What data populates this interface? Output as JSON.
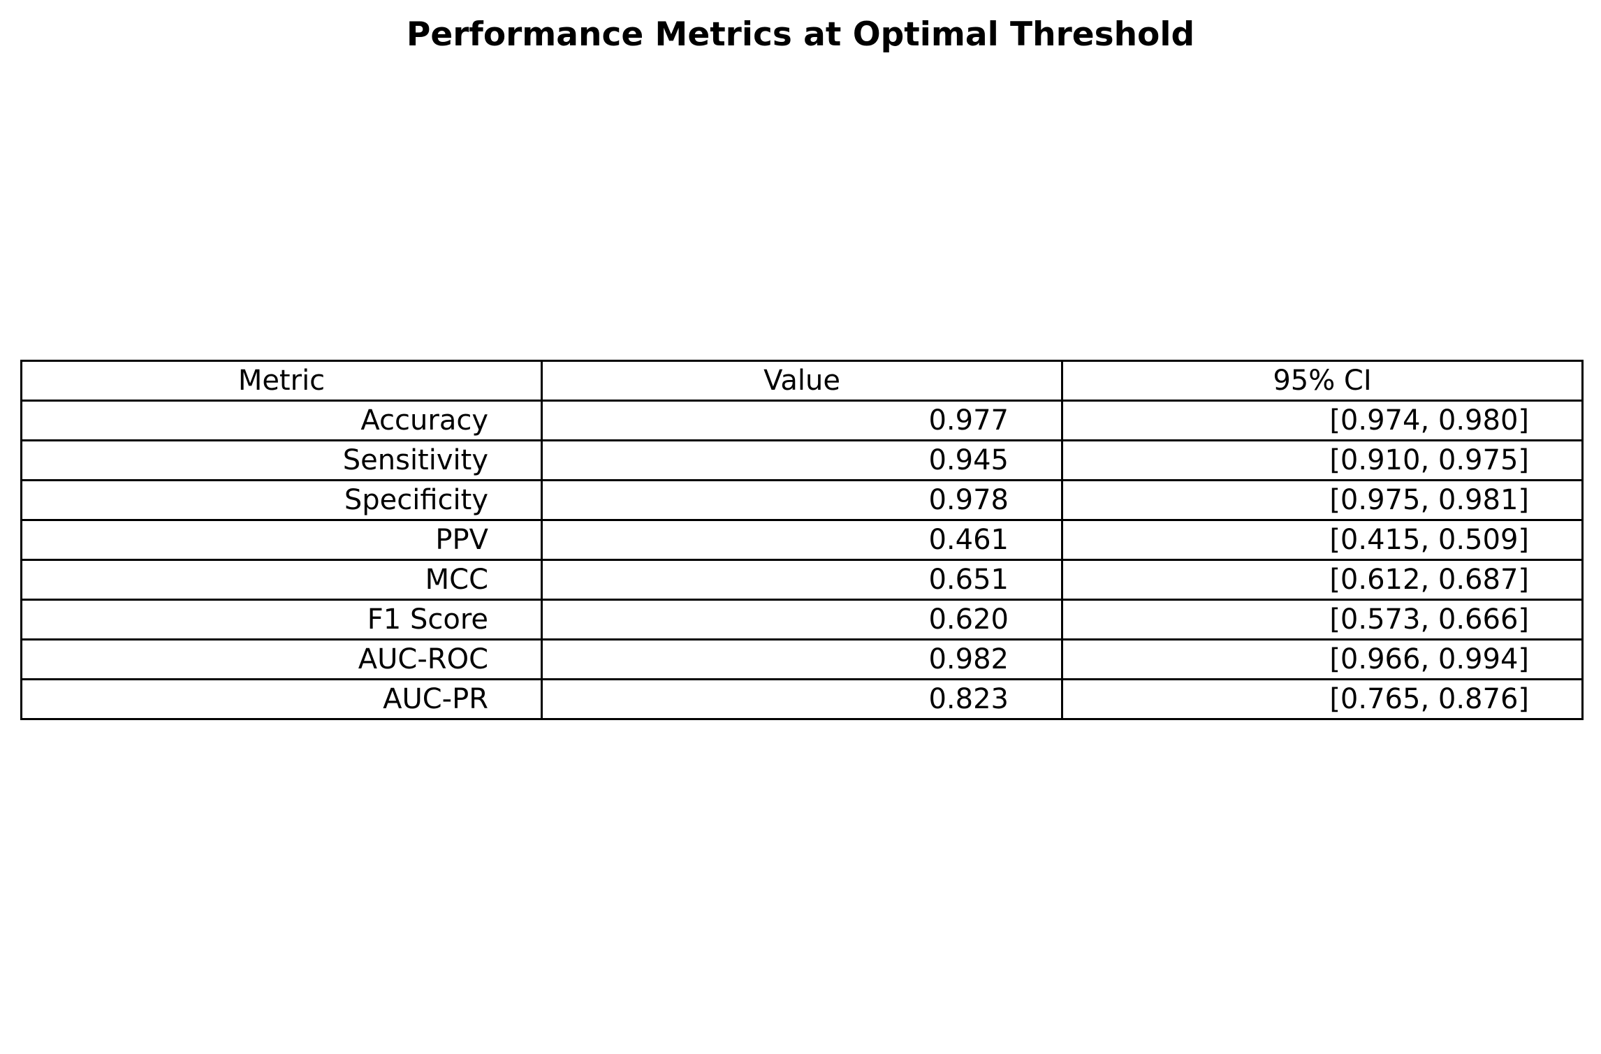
{
  "chart_data": {
    "type": "table",
    "title": "Performance Metrics at Optimal Threshold",
    "columns": [
      "Metric",
      "Value",
      "95% CI"
    ],
    "rows": [
      [
        "Accuracy",
        "0.977",
        "[0.974, 0.980]"
      ],
      [
        "Sensitivity",
        "0.945",
        "[0.910, 0.975]"
      ],
      [
        "Specificity",
        "0.978",
        "[0.975, 0.981]"
      ],
      [
        "PPV",
        "0.461",
        "[0.415, 0.509]"
      ],
      [
        "MCC",
        "0.651",
        "[0.612, 0.687]"
      ],
      [
        "F1 Score",
        "0.620",
        "[0.573, 0.666]"
      ],
      [
        "AUC-ROC",
        "0.982",
        "[0.966, 0.994]"
      ],
      [
        "AUC-PR",
        "0.823",
        "[0.765, 0.876]"
      ]
    ],
    "colors": {
      "border": "#000000",
      "text": "#000000",
      "background": "#ffffff"
    }
  }
}
